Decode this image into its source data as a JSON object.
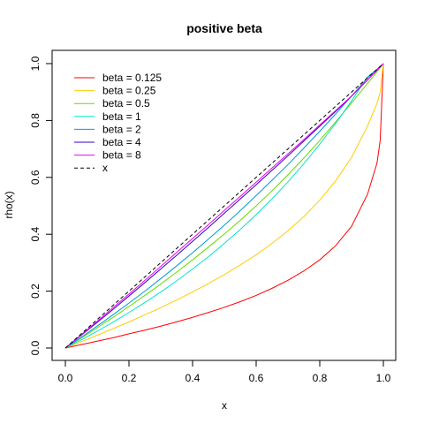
{
  "chart_data": {
    "type": "line",
    "title": "positive beta",
    "xlabel": "x",
    "ylabel": "rho(x)",
    "xlim": [
      0,
      1
    ],
    "ylim": [
      0,
      1
    ],
    "x_ticks": [
      "0.0",
      "0.2",
      "0.4",
      "0.6",
      "0.8",
      "1.0"
    ],
    "y_ticks": [
      "0.0",
      "0.2",
      "0.4",
      "0.6",
      "0.8",
      "1.0"
    ],
    "grid": false,
    "legend_position": "top-left",
    "x": [
      0,
      0.05,
      0.1,
      0.15,
      0.2,
      0.25,
      0.3,
      0.35,
      0.4,
      0.45,
      0.5,
      0.55,
      0.6,
      0.65,
      0.7,
      0.75,
      0.8,
      0.85,
      0.9,
      0.95,
      0.98,
      0.99,
      1.0
    ],
    "series": [
      {
        "name": "beta = 0.125",
        "color": "#FF0000",
        "dash": "",
        "values": [
          0,
          0.012,
          0.024,
          0.036,
          0.05,
          0.063,
          0.077,
          0.092,
          0.108,
          0.125,
          0.143,
          0.163,
          0.185,
          0.21,
          0.238,
          0.271,
          0.31,
          0.36,
          0.428,
          0.54,
          0.65,
          0.73,
          1.0
        ]
      },
      {
        "name": "beta = 0.25",
        "color": "#FFCC00",
        "dash": "",
        "values": [
          0,
          0.022,
          0.045,
          0.068,
          0.092,
          0.117,
          0.142,
          0.169,
          0.197,
          0.227,
          0.258,
          0.292,
          0.328,
          0.368,
          0.412,
          0.462,
          0.52,
          0.588,
          0.67,
          0.78,
          0.86,
          0.9,
          1.0
        ]
      },
      {
        "name": "beta = 0.5",
        "color": "#66DD00",
        "dash": "",
        "values": [
          0,
          0.035,
          0.071,
          0.108,
          0.146,
          0.185,
          0.225,
          0.267,
          0.31,
          0.355,
          0.401,
          0.449,
          0.5,
          0.553,
          0.609,
          0.668,
          0.73,
          0.795,
          0.862,
          0.93,
          0.972,
          0.986,
          1.0
        ]
      },
      {
        "name": "beta = 1",
        "color": "#00E5CC",
        "dash": "",
        "values": [
          0,
          0.029,
          0.059,
          0.091,
          0.125,
          0.16,
          0.197,
          0.236,
          0.278,
          0.321,
          0.368,
          0.417,
          0.469,
          0.525,
          0.584,
          0.648,
          0.717,
          0.79,
          0.869,
          0.953,
          0.98,
          0.99,
          1.0
        ]
      },
      {
        "name": "beta = 2",
        "color": "#0099DD",
        "dash": "",
        "values": [
          0,
          0.038,
          0.077,
          0.117,
          0.158,
          0.2,
          0.244,
          0.289,
          0.335,
          0.383,
          0.432,
          0.483,
          0.536,
          0.59,
          0.645,
          0.703,
          0.762,
          0.823,
          0.886,
          0.95,
          0.98,
          0.99,
          1.0
        ]
      },
      {
        "name": "beta = 4",
        "color": "#3300CC",
        "dash": "",
        "values": [
          0,
          0.045,
          0.09,
          0.136,
          0.183,
          0.23,
          0.278,
          0.326,
          0.375,
          0.424,
          0.474,
          0.524,
          0.574,
          0.625,
          0.676,
          0.728,
          0.78,
          0.832,
          0.885,
          0.942,
          0.977,
          0.988,
          1.0
        ]
      },
      {
        "name": "beta = 8",
        "color": "#EE00EE",
        "dash": "",
        "values": [
          0,
          0.047,
          0.094,
          0.142,
          0.19,
          0.238,
          0.287,
          0.336,
          0.385,
          0.434,
          0.484,
          0.533,
          0.583,
          0.633,
          0.683,
          0.733,
          0.784,
          0.835,
          0.886,
          0.943,
          0.977,
          0.988,
          1.0
        ]
      },
      {
        "name": "x",
        "color": "#000000",
        "dash": "4,3",
        "values": [
          0,
          0.05,
          0.1,
          0.15,
          0.2,
          0.25,
          0.3,
          0.35,
          0.4,
          0.45,
          0.5,
          0.55,
          0.6,
          0.65,
          0.7,
          0.75,
          0.8,
          0.85,
          0.9,
          0.95,
          0.98,
          0.99,
          1.0
        ]
      }
    ]
  }
}
